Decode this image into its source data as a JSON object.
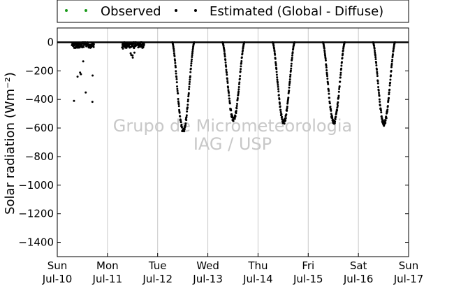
{
  "chart_data": {
    "type": "scatter",
    "ylabel": "Solar radiation (Wm⁻²)",
    "ylim": [
      -1500,
      100
    ],
    "yticks": [
      0,
      -200,
      -400,
      -600,
      -800,
      -1000,
      -1200,
      -1400
    ],
    "xlim": [
      "2011-07-10",
      "2011-07-17"
    ],
    "xticks": [
      {
        "day": "Sun",
        "date": "Jul-10"
      },
      {
        "day": "Mon",
        "date": "Jul-11"
      },
      {
        "day": "Tue",
        "date": "Jul-12"
      },
      {
        "day": "Wed",
        "date": "Jul-13"
      },
      {
        "day": "Thu",
        "date": "Jul-14"
      },
      {
        "day": "Fri",
        "date": "Jul-15"
      },
      {
        "day": "Sat",
        "date": "Jul-16"
      },
      {
        "day": "Sun",
        "date": "Jul-17"
      }
    ],
    "grid": "vertical",
    "legend": {
      "placement": "top"
    },
    "watermark": [
      "Grupo de Micrometeorologia",
      "IAG / USP"
    ],
    "series": [
      {
        "name": "Observed",
        "color": "#1a9b1a",
        "points": []
      },
      {
        "name": "Estimated (Global - Diffuse)",
        "color": "#000000",
        "daily_minimum": [
          {
            "date": "2011-07-10",
            "min": -430,
            "hour_of_min": 10.5
          },
          {
            "date": "2011-07-11",
            "min": -150,
            "hour_of_min": 11.5
          },
          {
            "date": "2011-07-12",
            "min": -620,
            "hour_of_min": 12.0
          },
          {
            "date": "2011-07-13",
            "min": -540,
            "hour_of_min": 12.0
          },
          {
            "date": "2011-07-14",
            "min": -560,
            "hour_of_min": 12.0
          },
          {
            "date": "2011-07-15",
            "min": -560,
            "hour_of_min": 12.0
          },
          {
            "date": "2011-07-16",
            "min": -570,
            "hour_of_min": 12.0
          }
        ],
        "daylight_hours": [
          7,
          17.5
        ]
      }
    ]
  }
}
